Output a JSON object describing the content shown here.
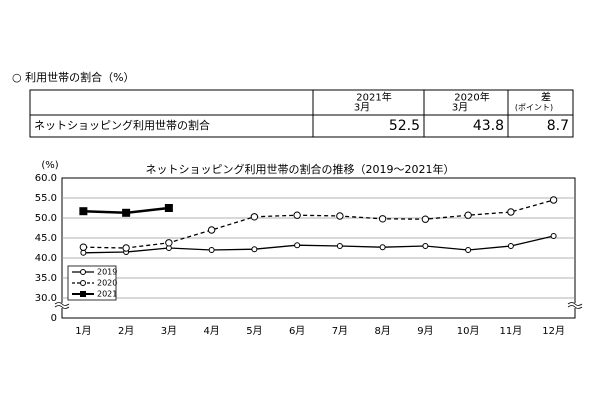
{
  "header": {
    "title": "○ 利用世帯の割合（%）"
  },
  "table": {
    "header": [
      [
        ""
      ],
      [
        "2021年",
        "3月"
      ],
      [
        "2020年",
        "3月"
      ],
      [
        "差",
        "(ポイント)"
      ]
    ],
    "rows": [
      [
        "ネットショッピング利用世帯の割合",
        "52.5",
        "43.8",
        "8.7"
      ]
    ]
  },
  "chart_data": {
    "type": "line",
    "title": "ネットショッピング利用世帯の割合の推移（2019～2021年）",
    "y_label": "(%)",
    "categories": [
      "1月",
      "2月",
      "3月",
      "4月",
      "5月",
      "6月",
      "7月",
      "8月",
      "9月",
      "10月",
      "11月",
      "12月"
    ],
    "series": [
      {
        "name": "2019",
        "color": "#000000",
        "dashed": false,
        "marker": "open-small",
        "values": [
          41.3,
          41.5,
          42.5,
          42.0,
          42.2,
          43.2,
          43.0,
          42.7,
          43.0,
          42.0,
          43.0,
          45.5
        ]
      },
      {
        "name": "2020",
        "color": "#000000",
        "dashed": true,
        "marker": "open",
        "values": [
          42.7,
          42.5,
          43.8,
          47.0,
          50.3,
          50.7,
          50.5,
          49.8,
          49.7,
          50.7,
          51.5,
          54.5
        ]
      },
      {
        "name": "2021",
        "color": "#000000",
        "dashed": false,
        "marker": "square",
        "values": [
          51.7,
          51.3,
          52.5,
          null,
          null,
          null,
          null,
          null,
          null,
          null,
          null,
          null
        ]
      }
    ],
    "ylim": [
      25,
      60
    ],
    "axis_break": true,
    "yticks": [
      {
        "value": 60,
        "label": "60.0"
      },
      {
        "value": 55,
        "label": "55.0"
      },
      {
        "value": 50,
        "label": "50.0"
      },
      {
        "value": 45,
        "label": "45.0"
      },
      {
        "value": 40,
        "label": "40.0"
      },
      {
        "value": 35,
        "label": "35.0"
      },
      {
        "value": 30,
        "label": "30.0"
      },
      0
    ],
    "grid": true,
    "legend": "lower-left"
  }
}
